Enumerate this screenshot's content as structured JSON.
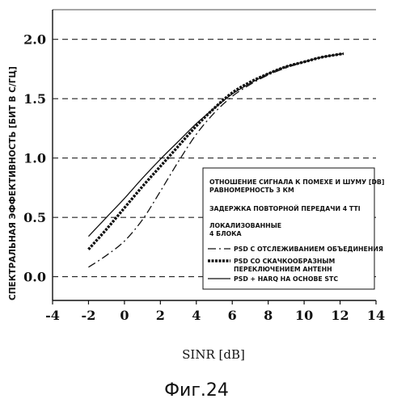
{
  "chart_data": {
    "type": "line",
    "ylabel": "СПЕКТРАЛЬНАЯ ЭФФЕКТИВНОСТЬ [БИТ В С/ГЦ]",
    "xlabel": "SINR [dB]",
    "xlim": [
      -4,
      14
    ],
    "ylim": [
      -0.2,
      2.25
    ],
    "x_ticks": [
      "-4",
      "-2",
      "0",
      "2",
      "4",
      "6",
      "8",
      "10",
      "12",
      "14"
    ],
    "y_ticks": [
      "0.0",
      "0.5",
      "1.0",
      "1.5",
      "2.0"
    ],
    "grid": "horizontal dashed",
    "legend": {
      "placement": "lower-right",
      "notes": [
        "ОТНОШЕНИЕ СИГНАЛА К ПОМЕХЕ И ШУМУ [DB]",
        "РАВНОМЕРНОСТЬ 3 КМ",
        "ЗАДЕРЖКА ПОВТОРНОЙ ПЕРЕДАЧИ 4 TTI",
        "ЛОКАЛИЗОВАННЫЕ",
        "4 БЛОКА"
      ]
    },
    "series": [
      {
        "name_lines": [
          "PSD С ОТСЛЕЖИВАНИЕМ ОБЪЕДИНЕНИЯ"
        ],
        "style": "dashdot",
        "x": [
          -2,
          -1,
          0,
          1,
          2,
          3,
          4,
          5,
          6,
          7,
          8,
          9,
          10,
          11,
          12.2
        ],
        "y": [
          0.08,
          0.18,
          0.3,
          0.48,
          0.72,
          0.97,
          1.2,
          1.38,
          1.52,
          1.62,
          1.7,
          1.76,
          1.81,
          1.85,
          1.88
        ]
      },
      {
        "name_lines": [
          "PSD СО СКАЧКООБРАЗНЫМ",
          "ПЕРЕКЛЮЧЕНИЕМ АНТЕНН"
        ],
        "style": "thick-dashed",
        "x": [
          -2,
          -1,
          0,
          1,
          2,
          3,
          4,
          5,
          6,
          7,
          8,
          9,
          10,
          11,
          12.2
        ],
        "y": [
          0.23,
          0.4,
          0.58,
          0.76,
          0.93,
          1.1,
          1.27,
          1.42,
          1.55,
          1.64,
          1.71,
          1.77,
          1.81,
          1.85,
          1.88
        ]
      },
      {
        "name_lines": [
          "PSD + HARQ НА ОСНОВЕ STC"
        ],
        "style": "solid",
        "x": [
          -2,
          -1,
          0,
          1,
          2,
          3,
          4,
          5,
          6,
          7,
          8,
          9,
          10,
          11,
          12.2
        ],
        "y": [
          0.34,
          0.5,
          0.66,
          0.83,
          0.99,
          1.14,
          1.29,
          1.42,
          1.54,
          1.63,
          1.71,
          1.77,
          1.81,
          1.85,
          1.88
        ]
      }
    ]
  },
  "figure_caption": "Фиг.24"
}
